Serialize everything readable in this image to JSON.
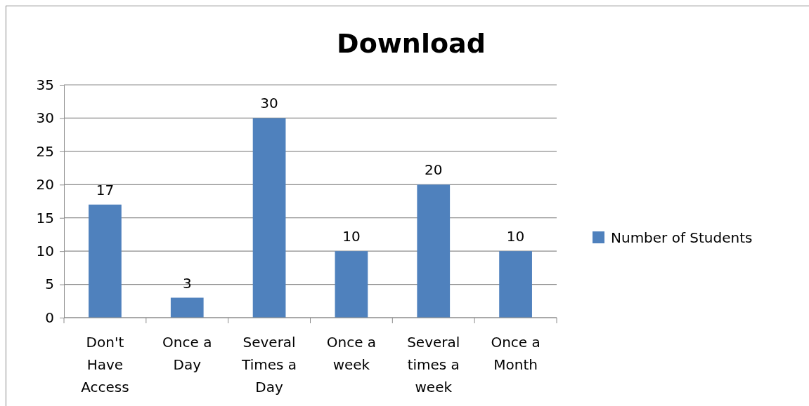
{
  "chart_data": {
    "type": "bar",
    "title": "Download",
    "categories": [
      "Don't Have Access",
      "Once a Day",
      "Several Times a Day",
      "Once a week",
      "Several times a week",
      "Once a Month"
    ],
    "series": [
      {
        "name": "Number of Students",
        "color": "#4f81bd",
        "values": [
          17,
          3,
          30,
          10,
          20,
          10
        ]
      }
    ],
    "ylim": [
      0,
      35
    ],
    "yticks": [
      0,
      5,
      10,
      15,
      20,
      25,
      30,
      35
    ],
    "grid": "y",
    "legend": "right",
    "data_labels": true
  }
}
